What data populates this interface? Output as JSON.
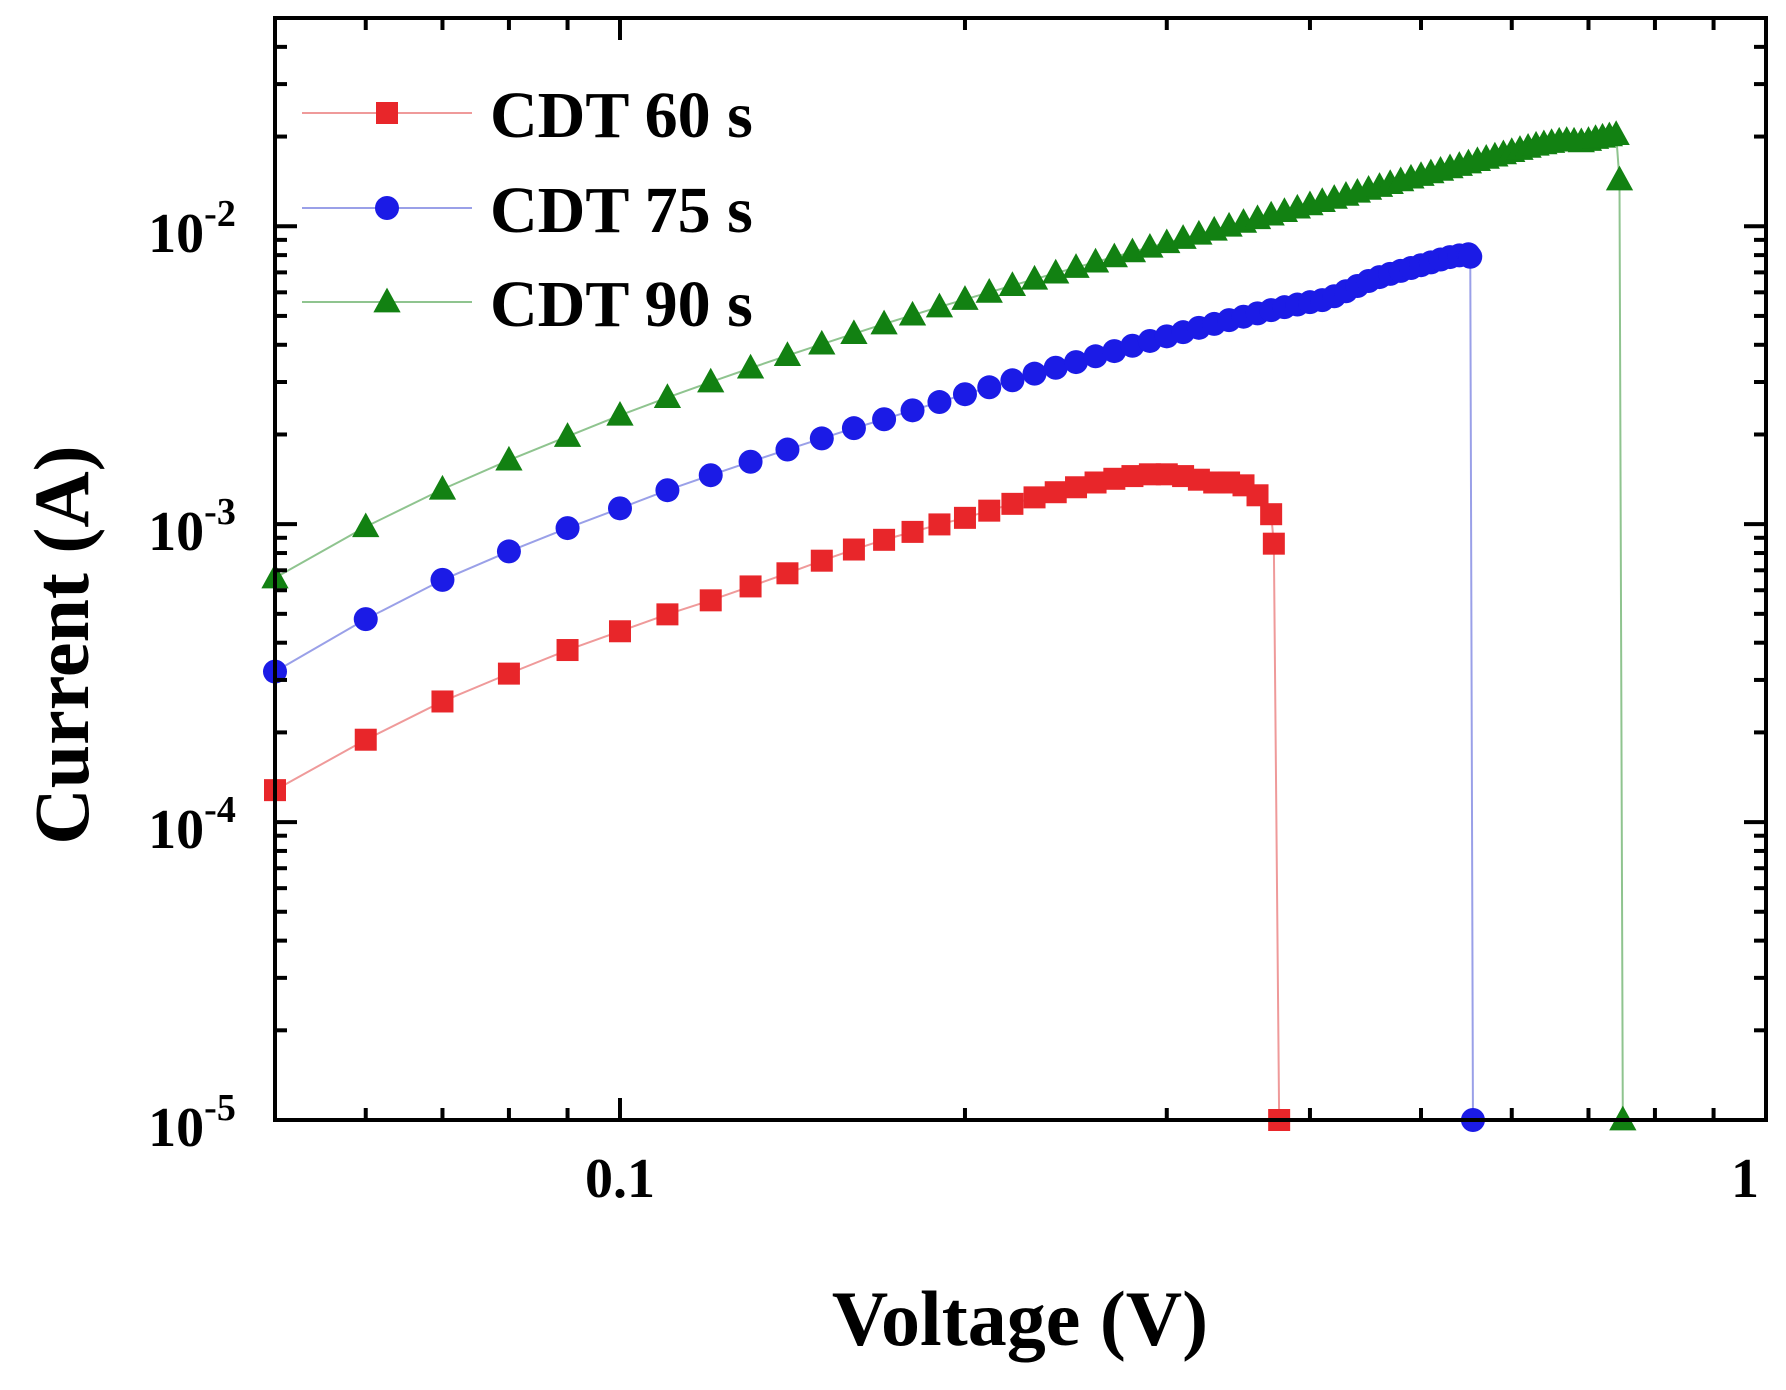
{
  "chart_data": {
    "type": "line",
    "x_scale": "log",
    "y_scale": "log",
    "xlabel": "Voltage (V)",
    "ylabel": "Current (A)",
    "xlim": [
      0.05,
      1
    ],
    "ylim": [
      1e-05,
      0.05
    ],
    "grid": false,
    "legend_position": "top-left",
    "x_tick_labels": [
      {
        "value": 0.1,
        "label": "0.1"
      },
      {
        "value": 1,
        "label": "1"
      }
    ],
    "y_tick_labels": [
      {
        "value": 1e-05,
        "base": "10",
        "exp": "-5"
      },
      {
        "value": 0.0001,
        "base": "10",
        "exp": "-4"
      },
      {
        "value": 0.001,
        "base": "10",
        "exp": "-3"
      },
      {
        "value": 0.01,
        "base": "10",
        "exp": "-2"
      }
    ],
    "series": [
      {
        "name": "CDT 60 s",
        "color": "#e8262a",
        "line_color": "#ef9a9a",
        "marker": "square",
        "x": [
          0.05,
          0.06,
          0.07,
          0.08,
          0.09,
          0.1,
          0.11,
          0.12,
          0.13,
          0.14,
          0.15,
          0.16,
          0.17,
          0.18,
          0.19,
          0.2,
          0.21,
          0.22,
          0.23,
          0.24,
          0.25,
          0.26,
          0.27,
          0.28,
          0.29,
          0.3,
          0.31,
          0.32,
          0.33,
          0.34,
          0.35,
          0.36,
          0.37,
          0.372,
          0.376
        ],
        "y": [
          0.000128,
          0.000189,
          0.000254,
          0.000315,
          0.000378,
          0.000437,
          0.000498,
          0.000555,
          0.000618,
          0.000684,
          0.000754,
          0.000822,
          0.000886,
          0.000942,
          0.000998,
          0.00105,
          0.00111,
          0.00117,
          0.00123,
          0.00128,
          0.00133,
          0.00138,
          0.00142,
          0.00145,
          0.00147,
          0.00147,
          0.00145,
          0.00141,
          0.00138,
          0.00138,
          0.00135,
          0.00125,
          0.00108,
          0.00086,
          1e-05
        ]
      },
      {
        "name": "CDT 75 s",
        "color": "#1b1be6",
        "line_color": "#9aa0e8",
        "marker": "circle",
        "x": [
          0.05,
          0.06,
          0.07,
          0.08,
          0.09,
          0.1,
          0.11,
          0.12,
          0.13,
          0.14,
          0.15,
          0.16,
          0.17,
          0.18,
          0.19,
          0.2,
          0.21,
          0.22,
          0.23,
          0.24,
          0.25,
          0.26,
          0.27,
          0.28,
          0.29,
          0.3,
          0.31,
          0.32,
          0.33,
          0.34,
          0.35,
          0.36,
          0.37,
          0.38,
          0.39,
          0.4,
          0.41,
          0.42,
          0.43,
          0.44,
          0.45,
          0.46,
          0.47,
          0.48,
          0.49,
          0.5,
          0.51,
          0.52,
          0.53,
          0.54,
          0.55,
          0.552,
          0.555
        ],
        "y": [
          0.00032,
          0.00048,
          0.00065,
          0.00081,
          0.00097,
          0.00113,
          0.0013,
          0.00146,
          0.00162,
          0.00178,
          0.00194,
          0.0021,
          0.00225,
          0.00241,
          0.00257,
          0.00273,
          0.00288,
          0.00304,
          0.0032,
          0.00335,
          0.0035,
          0.00366,
          0.00381,
          0.00397,
          0.00412,
          0.00427,
          0.00441,
          0.00456,
          0.0047,
          0.00484,
          0.00497,
          0.0051,
          0.00523,
          0.00535,
          0.00546,
          0.00556,
          0.00565,
          0.00582,
          0.00605,
          0.0063,
          0.00655,
          0.00675,
          0.00692,
          0.00708,
          0.00724,
          0.0074,
          0.00756,
          0.00773,
          0.00788,
          0.00798,
          0.00805,
          0.0079,
          1e-05
        ]
      },
      {
        "name": "CDT 90 s",
        "color": "#128112",
        "line_color": "#8fc48f",
        "marker": "triangle",
        "x": [
          0.05,
          0.06,
          0.07,
          0.08,
          0.09,
          0.1,
          0.11,
          0.12,
          0.13,
          0.14,
          0.15,
          0.16,
          0.17,
          0.18,
          0.19,
          0.2,
          0.21,
          0.22,
          0.23,
          0.24,
          0.25,
          0.26,
          0.27,
          0.28,
          0.29,
          0.3,
          0.31,
          0.32,
          0.33,
          0.34,
          0.35,
          0.36,
          0.37,
          0.38,
          0.39,
          0.4,
          0.41,
          0.42,
          0.43,
          0.44,
          0.45,
          0.46,
          0.47,
          0.48,
          0.49,
          0.5,
          0.51,
          0.52,
          0.53,
          0.54,
          0.55,
          0.56,
          0.57,
          0.58,
          0.59,
          0.6,
          0.61,
          0.62,
          0.63,
          0.64,
          0.65,
          0.66,
          0.67,
          0.68,
          0.69,
          0.7,
          0.71,
          0.72,
          0.73,
          0.74,
          0.745,
          0.75
        ],
        "y": [
          0.00066,
          0.00098,
          0.00131,
          0.00164,
          0.00197,
          0.00232,
          0.00266,
          0.003,
          0.00334,
          0.00368,
          0.00402,
          0.00436,
          0.0047,
          0.00503,
          0.00536,
          0.00568,
          0.006,
          0.00632,
          0.00664,
          0.00696,
          0.00727,
          0.00758,
          0.00789,
          0.0082,
          0.0085,
          0.0088,
          0.0091,
          0.0094,
          0.0097,
          0.01,
          0.0103,
          0.0106,
          0.0109,
          0.0112,
          0.0115,
          0.0118,
          0.0121,
          0.0124,
          0.0127,
          0.013,
          0.0133,
          0.0136,
          0.0139,
          0.0142,
          0.0145,
          0.0148,
          0.0151,
          0.0154,
          0.0157,
          0.016,
          0.0163,
          0.0166,
          0.0169,
          0.0172,
          0.0175,
          0.0178,
          0.0181,
          0.0184,
          0.0187,
          0.0189,
          0.0191,
          0.0193,
          0.0194,
          0.0193,
          0.0192,
          0.0194,
          0.0197,
          0.0199,
          0.0201,
          0.0203,
          0.0143,
          1e-05
        ]
      }
    ]
  }
}
